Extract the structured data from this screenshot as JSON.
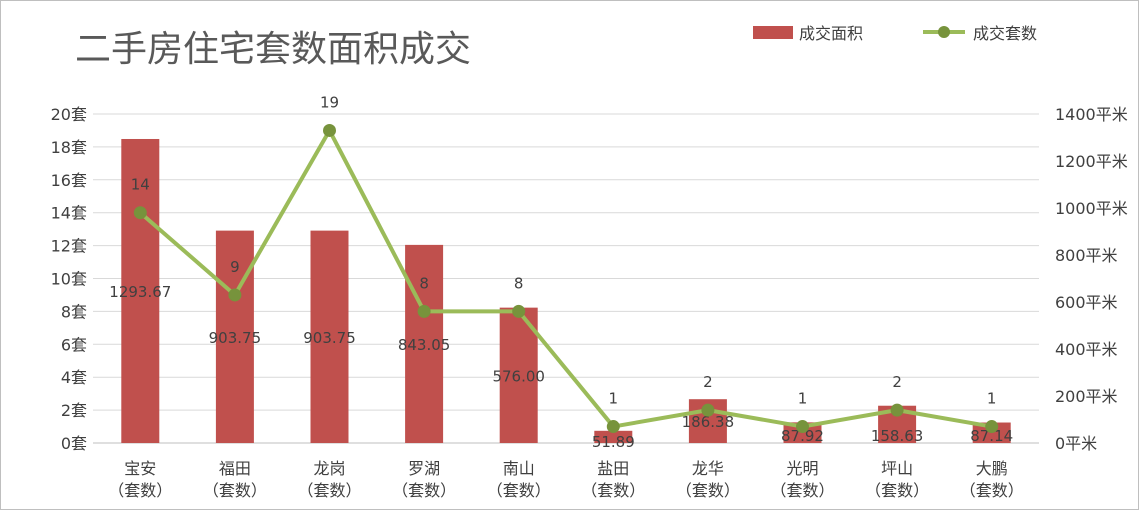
{
  "chart_data": {
    "type": "bar+line",
    "title": "二手房住宅套数面积成交",
    "categories": [
      [
        "宝安",
        "（套数）"
      ],
      [
        "福田",
        "（套数）"
      ],
      [
        "龙岗",
        "（套数）"
      ],
      [
        "罗湖",
        "（套数）"
      ],
      [
        "南山",
        "（套数）"
      ],
      [
        "盐田",
        "（套数）"
      ],
      [
        "龙华",
        "（套数）"
      ],
      [
        "光明",
        "（套数）"
      ],
      [
        "坪山",
        "（套数）"
      ],
      [
        "大鹏",
        "（套数）"
      ]
    ],
    "series": [
      {
        "name": "成交面积",
        "type": "bar",
        "axis": "right",
        "color": "#c0504d",
        "values": [
          1293.67,
          903.75,
          903.75,
          843.05,
          576.0,
          51.89,
          186.38,
          87.92,
          158.63,
          87.14
        ],
        "labels": [
          "1293.67",
          "903.75",
          "903.75",
          "843.05",
          "576.00",
          "51.89",
          "186.38",
          "87.92",
          "158.63",
          "87.14"
        ]
      },
      {
        "name": "成交套数",
        "type": "line",
        "axis": "left",
        "color": "#9bbb59",
        "values": [
          14,
          9,
          19,
          8,
          8,
          1,
          2,
          1,
          2,
          1
        ],
        "labels": [
          "14",
          "9",
          "19",
          "8",
          "8",
          "1",
          "2",
          "1",
          "2",
          "1"
        ]
      }
    ],
    "y_left": {
      "min": 0,
      "max": 20,
      "step": 2,
      "tick_labels": [
        "0套",
        "2套",
        "4套",
        "6套",
        "8套",
        "10套",
        "12套",
        "14套",
        "16套",
        "18套",
        "20套"
      ]
    },
    "y_right": {
      "min": 0,
      "max": 1400,
      "step": 200,
      "tick_labels": [
        "0平米",
        "200平米",
        "400平米",
        "600平米",
        "800平米",
        "1000平米",
        "1200平米",
        "1400平米"
      ]
    },
    "grid": true,
    "legend_position": "top-right",
    "colors": {
      "bar": "#c0504d",
      "line": "#9bbb59",
      "marker": "#77933c",
      "grid": "#d9d9d9",
      "text": "#404040",
      "title": "#595959"
    }
  }
}
